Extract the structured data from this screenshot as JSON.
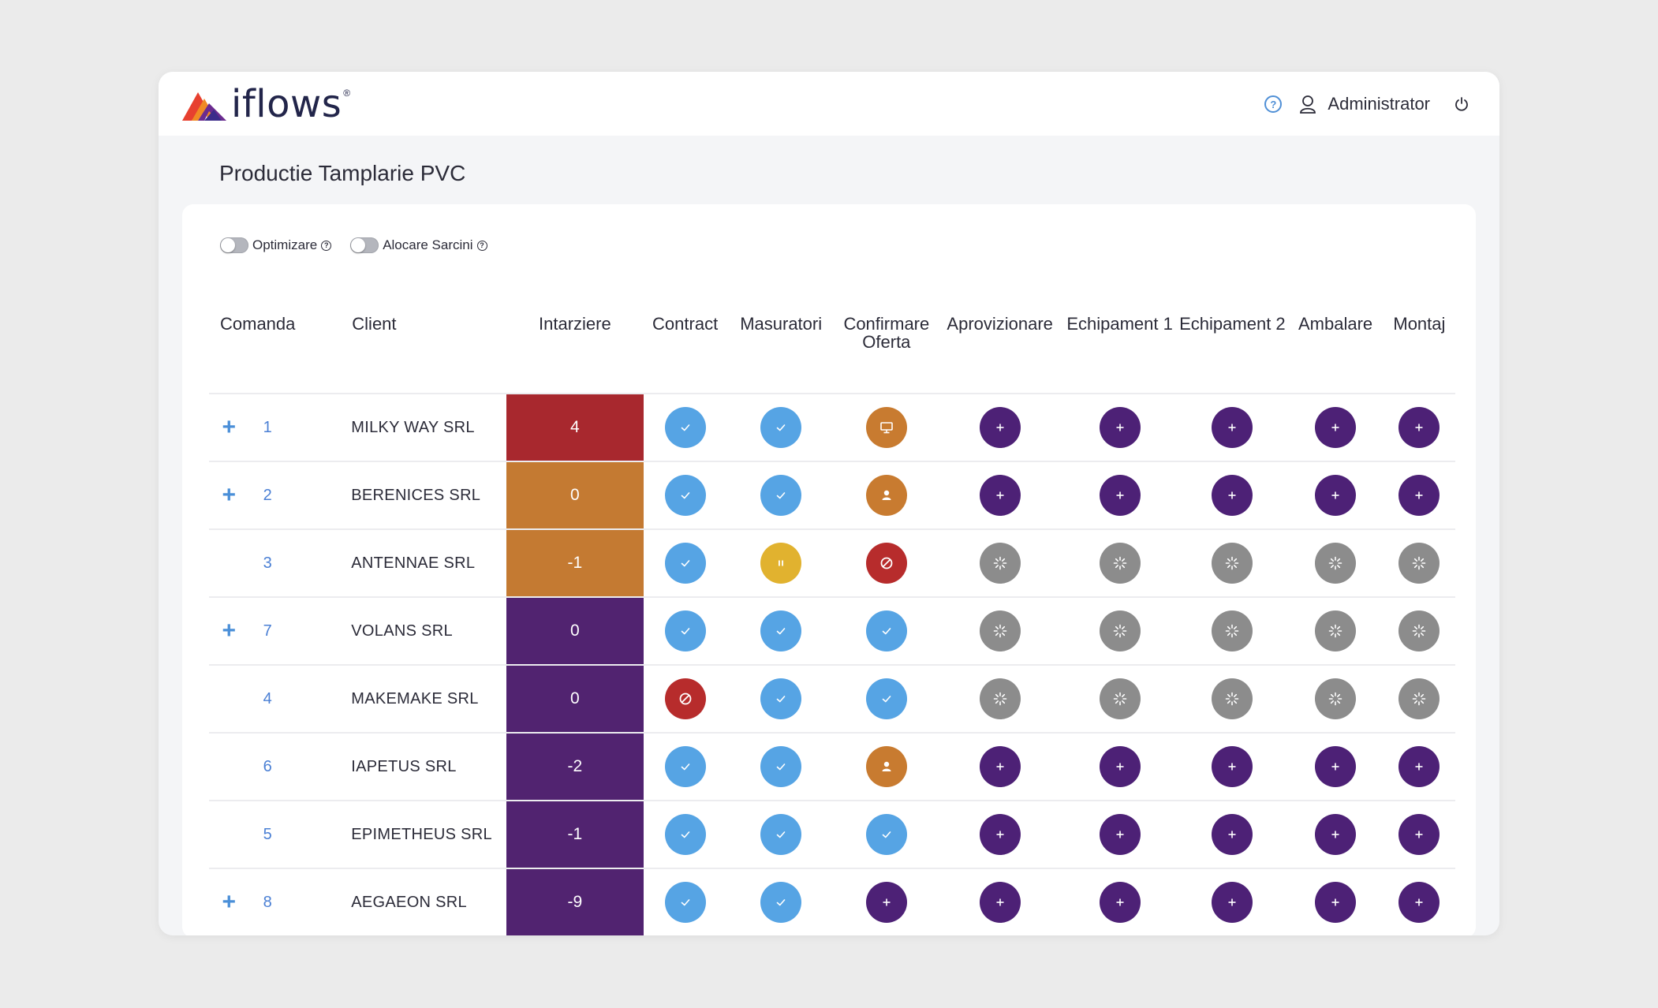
{
  "app": {
    "logo_text": "iflows",
    "logo_mark": "®"
  },
  "header": {
    "user_name": "Administrator"
  },
  "page": {
    "title": "Productie Tamplarie PVC"
  },
  "toggles": [
    {
      "label": "Optimizare",
      "on": false
    },
    {
      "label": "Alocare Sarcini",
      "on": false
    }
  ],
  "table": {
    "columns": {
      "order": "Comanda",
      "client": "Client",
      "delay": "Intarziere",
      "stages": [
        "Contract",
        "Masuratori",
        "Confirmare Oferta",
        "Aprovizionare",
        "Echipament 1",
        "Echipament 2",
        "Ambalare",
        "Montaj"
      ]
    },
    "status_colors": {
      "done": "#56a4e4",
      "add": "#4d2176",
      "waiting": "#8c8c8c",
      "paused": "#e1b22f",
      "blocked": "#b72c2c",
      "review": "#c87b30",
      "assigned": "#c87b30"
    },
    "delay_colors": {
      "red": "#a8282e",
      "orange": "#c47a32",
      "purple": "#512370"
    },
    "rows": [
      {
        "expand": "+",
        "order": "1",
        "client": "MILKY WAY SRL",
        "delay": "4",
        "delay_color": "red",
        "stages": [
          "done",
          "done",
          "review",
          "add",
          "add",
          "add",
          "add",
          "add"
        ]
      },
      {
        "expand": "+",
        "order": "2",
        "client": "BERENICES SRL",
        "delay": "0",
        "delay_color": "orange",
        "stages": [
          "done",
          "done",
          "assigned",
          "add",
          "add",
          "add",
          "add",
          "add"
        ]
      },
      {
        "expand": "",
        "order": "3",
        "client": "ANTENNAE SRL",
        "delay": "-1",
        "delay_color": "orange",
        "stages": [
          "done",
          "paused",
          "blocked",
          "waiting",
          "waiting",
          "waiting",
          "waiting",
          "waiting"
        ]
      },
      {
        "expand": "+",
        "order": "7",
        "client": "VOLANS SRL",
        "delay": "0",
        "delay_color": "purple",
        "stages": [
          "done",
          "done",
          "done",
          "waiting",
          "waiting",
          "waiting",
          "waiting",
          "waiting"
        ]
      },
      {
        "expand": "",
        "order": "4",
        "client": "MAKEMAKE SRL",
        "delay": "0",
        "delay_color": "purple",
        "stages": [
          "blocked",
          "done",
          "done",
          "waiting",
          "waiting",
          "waiting",
          "waiting",
          "waiting"
        ]
      },
      {
        "expand": "",
        "order": "6",
        "client": "IAPETUS SRL",
        "delay": "-2",
        "delay_color": "purple",
        "stages": [
          "done",
          "done",
          "assigned",
          "add",
          "add",
          "add",
          "add",
          "add"
        ]
      },
      {
        "expand": "",
        "order": "5",
        "client": "EPIMETHEUS SRL",
        "delay": "-1",
        "delay_color": "purple",
        "stages": [
          "done",
          "done",
          "done",
          "add",
          "add",
          "add",
          "add",
          "add"
        ]
      },
      {
        "expand": "+",
        "order": "8",
        "client": "AEGAEON SRL",
        "delay": "-9",
        "delay_color": "purple",
        "stages": [
          "done",
          "done",
          "add",
          "add",
          "add",
          "add",
          "add",
          "add"
        ]
      }
    ]
  }
}
